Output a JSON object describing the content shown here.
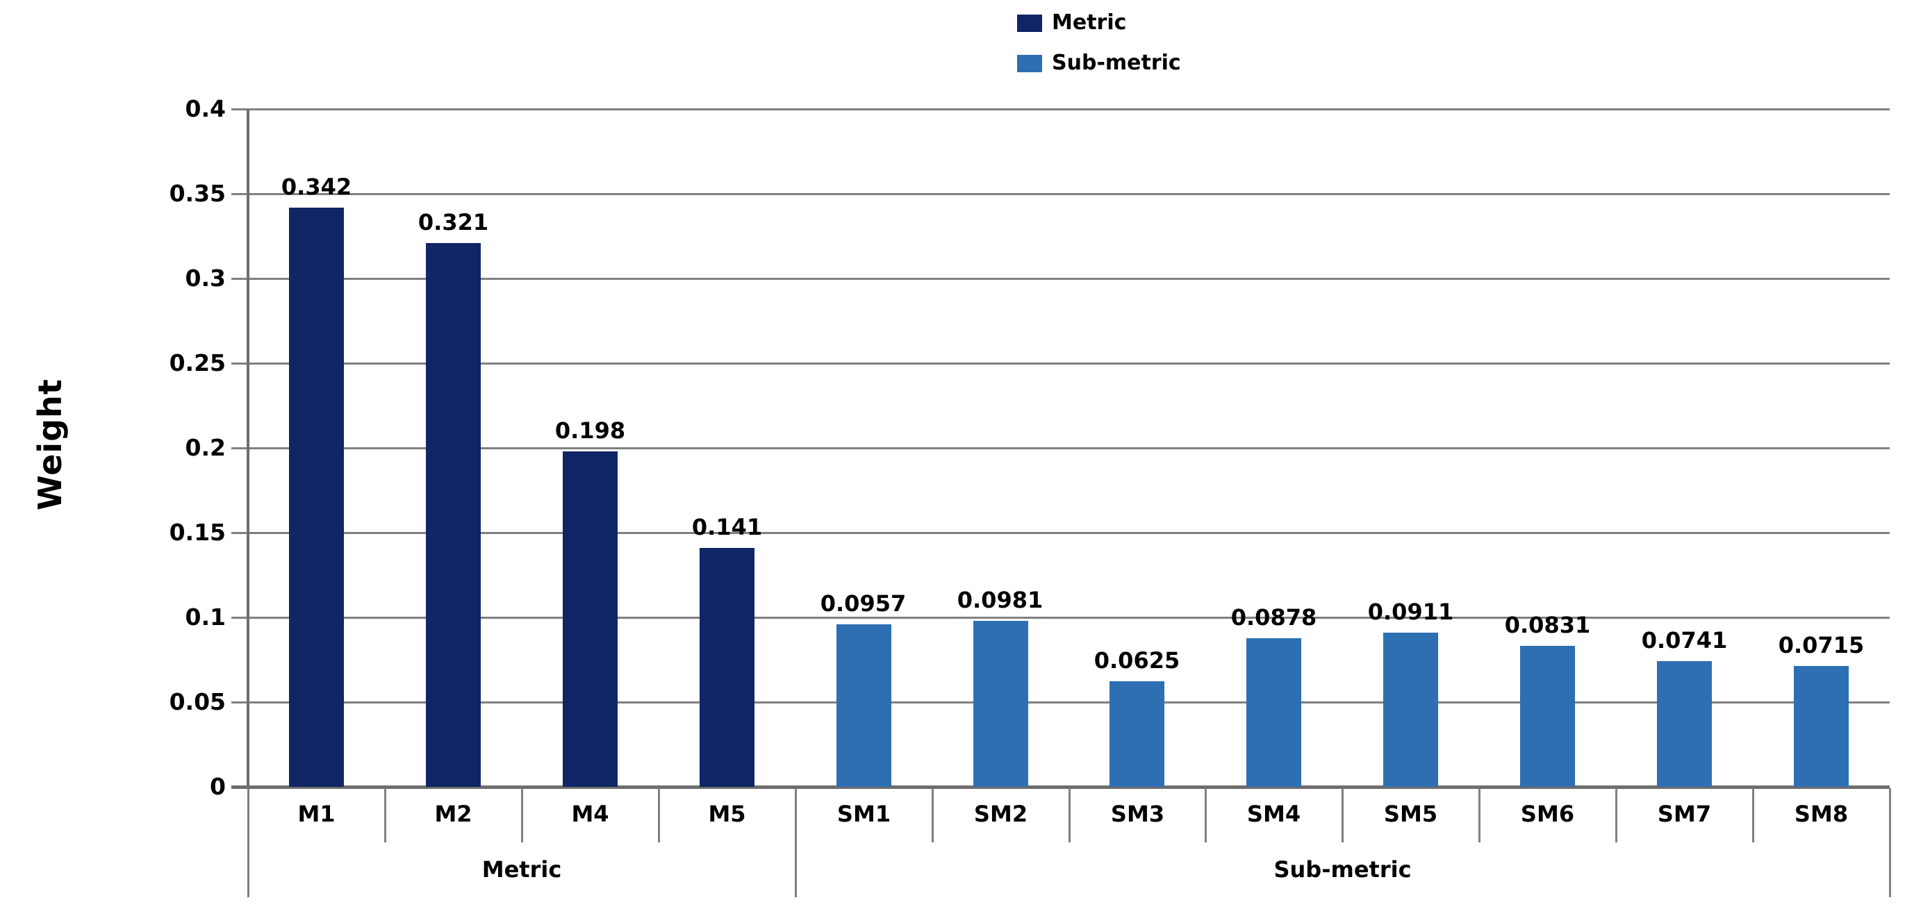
{
  "chart_data": {
    "type": "bar",
    "title": "",
    "ylabel": "Weight",
    "xlabel": "",
    "ylim": [
      0,
      0.4
    ],
    "ytick_step": 0.05,
    "ytick_labels": [
      "0.4",
      "0.35",
      "0.3",
      "0.25",
      "0.2",
      "0.15",
      "0.1",
      "0.05",
      "0"
    ],
    "grid": true,
    "legend_position": "top",
    "series": [
      {
        "name": "Metric",
        "group_label": "Metric",
        "color": "#102565",
        "categories": [
          "M1",
          "M2",
          "M4",
          "M5"
        ],
        "values": [
          0.342,
          0.321,
          0.198,
          0.141
        ],
        "value_labels": [
          "0.342",
          "0.321",
          "0.198",
          "0.141"
        ]
      },
      {
        "name": "Sub-metric",
        "group_label": "Sub-metric",
        "color": "#2D6FB2",
        "categories": [
          "SM1",
          "SM2",
          "SM3",
          "SM4",
          "SM5",
          "SM6",
          "SM7",
          "SM8"
        ],
        "values": [
          0.0957,
          0.0981,
          0.0625,
          0.0878,
          0.0911,
          0.0831,
          0.0741,
          0.0715
        ],
        "value_labels": [
          "0.0957",
          "0.0981",
          "0.0625",
          "0.0878",
          "0.0911",
          "0.0831",
          "0.0741",
          "0.0715"
        ]
      }
    ],
    "colors": {
      "gridline": "#808080",
      "axis": "#6E6E6E",
      "text": "#000000",
      "background": "#FFFFFF"
    }
  }
}
